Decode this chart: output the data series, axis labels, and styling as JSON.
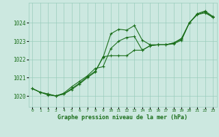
{
  "title": "Graphe pression niveau de la mer (hPa)",
  "bg_color": "#cce8e0",
  "plot_bg_color": "#cce8e0",
  "line_color": "#1a6e1a",
  "grid_color": "#99ccbb",
  "xlim": [
    -0.5,
    23.5
  ],
  "ylim": [
    1019.4,
    1025.1
  ],
  "yticks": [
    1020,
    1021,
    1022,
    1023,
    1024
  ],
  "xticks": [
    0,
    1,
    2,
    3,
    4,
    5,
    6,
    7,
    8,
    9,
    10,
    11,
    12,
    13,
    14,
    15,
    16,
    17,
    18,
    19,
    20,
    21,
    22,
    23
  ],
  "series1_x": [
    0,
    1,
    2,
    3,
    4,
    5,
    6,
    7,
    8,
    9,
    10,
    11,
    12,
    13,
    14,
    15,
    16,
    17,
    18,
    19,
    20,
    21,
    22,
    23
  ],
  "series1_y": [
    1020.4,
    1020.2,
    1020.1,
    1020.0,
    1020.1,
    1020.4,
    1020.7,
    1021.05,
    1021.35,
    1022.1,
    1023.4,
    1023.65,
    1023.6,
    1023.85,
    1023.05,
    1022.8,
    1022.8,
    1022.8,
    1022.85,
    1023.05,
    1024.0,
    1024.45,
    1024.6,
    1024.3
  ],
  "series2_x": [
    0,
    1,
    2,
    3,
    4,
    5,
    6,
    7,
    8,
    9,
    10,
    11,
    12,
    13,
    14,
    15,
    16,
    17,
    18,
    19,
    20,
    21,
    22,
    23
  ],
  "series2_y": [
    1020.4,
    1020.2,
    1020.1,
    1020.0,
    1020.15,
    1020.5,
    1020.8,
    1021.1,
    1021.5,
    1021.6,
    1022.6,
    1023.0,
    1023.2,
    1023.25,
    1022.5,
    1022.75,
    1022.8,
    1022.8,
    1022.9,
    1023.15,
    1024.0,
    1024.5,
    1024.65,
    1024.35
  ],
  "series3_x": [
    0,
    1,
    2,
    3,
    4,
    5,
    6,
    7,
    8,
    9,
    10,
    11,
    12,
    13,
    14,
    15,
    16,
    17,
    18,
    19,
    20,
    21,
    22,
    23
  ],
  "series3_y": [
    1020.4,
    1020.2,
    1020.05,
    1020.0,
    1020.1,
    1020.35,
    1020.65,
    1021.0,
    1021.3,
    1022.15,
    1022.2,
    1022.2,
    1022.2,
    1022.5,
    1022.5,
    1022.75,
    1022.8,
    1022.8,
    1022.9,
    1023.1,
    1024.0,
    1024.45,
    1024.55,
    1024.3
  ]
}
